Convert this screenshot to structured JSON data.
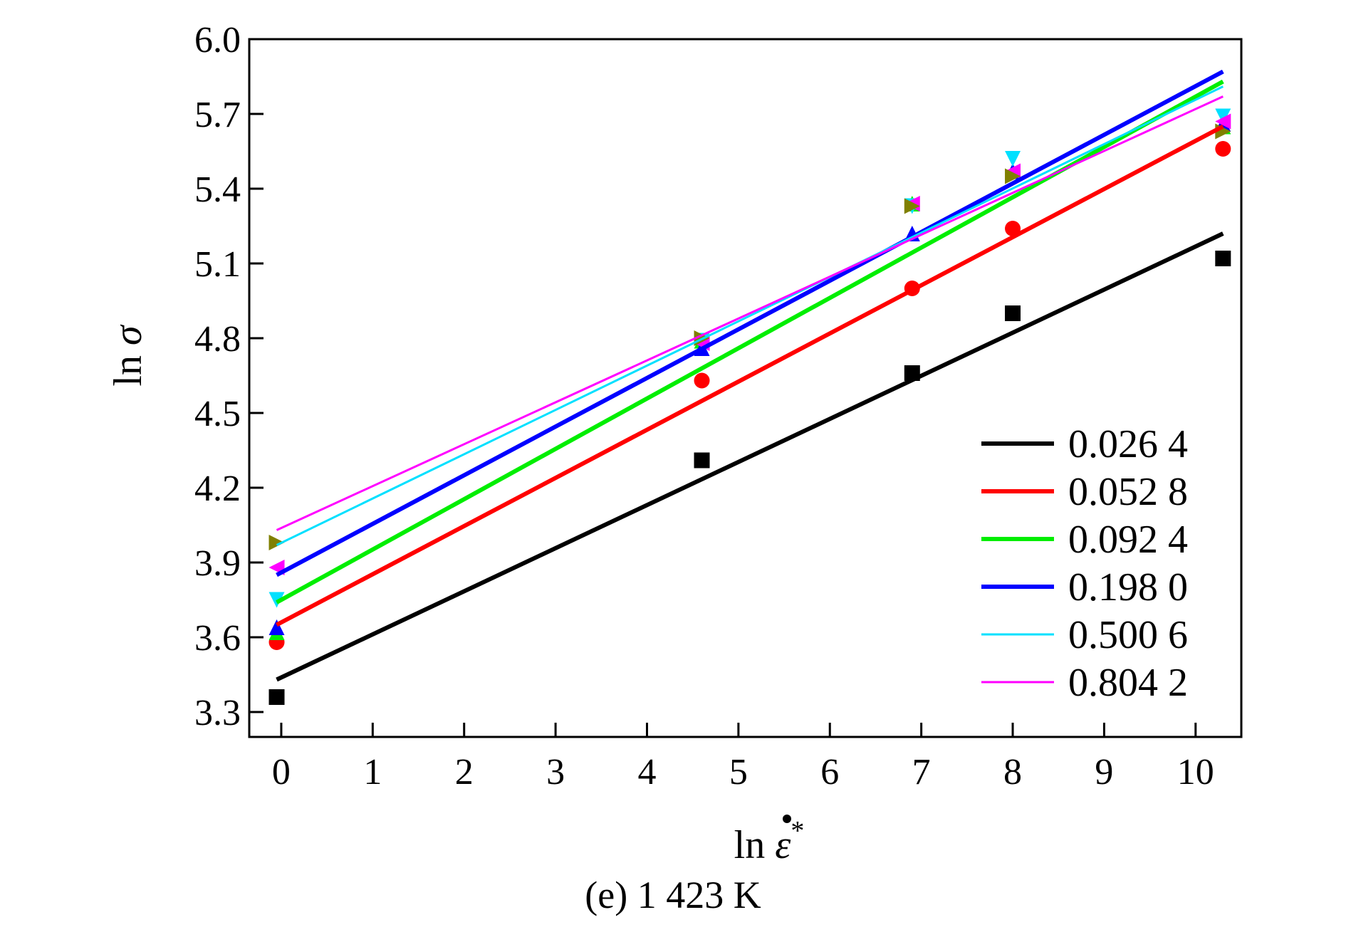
{
  "caption": "(e) 1 423 K",
  "chart_data": {
    "type": "scatter",
    "xlabel_prefix": "ln ",
    "xlabel_symbol": "ε",
    "xlabel_superscript": "*",
    "ylabel_prefix": "ln ",
    "ylabel_symbol": "σ",
    "xlim": [
      -0.35,
      10.5
    ],
    "ylim": [
      3.2,
      6.0
    ],
    "x_ticks": [
      0,
      1,
      2,
      3,
      4,
      5,
      6,
      7,
      8,
      9,
      10
    ],
    "x_tick_labels": [
      "0",
      "1",
      "2",
      "3",
      "4",
      "5",
      "6",
      "7",
      "8",
      "9",
      "10"
    ],
    "y_ticks": [
      3.3,
      3.6,
      3.9,
      4.2,
      4.5,
      4.8,
      5.1,
      5.4,
      5.7,
      6.0
    ],
    "y_tick_labels": [
      "3.3",
      "3.6",
      "3.9",
      "4.2",
      "4.5",
      "4.8",
      "5.1",
      "5.4",
      "5.7",
      "6.0"
    ],
    "grid": false,
    "legend_position": "bottom-right",
    "series": [
      {
        "name": "0.026 4",
        "color": "#000000",
        "marker": "square",
        "line_width": 6,
        "fit": {
          "x": [
            -0.05,
            10.3
          ],
          "y": [
            3.43,
            5.22
          ]
        },
        "points": [
          [
            -0.05,
            3.36
          ],
          [
            4.6,
            4.31
          ],
          [
            6.9,
            4.66
          ],
          [
            8.0,
            4.9
          ],
          [
            10.3,
            5.12
          ]
        ]
      },
      {
        "name": "0.052 8",
        "color": "#ff0000",
        "marker": "circle",
        "line_width": 6,
        "fit": {
          "x": [
            -0.05,
            10.3
          ],
          "y": [
            3.65,
            5.65
          ]
        },
        "points": [
          [
            -0.05,
            3.58
          ],
          [
            4.6,
            4.63
          ],
          [
            6.9,
            5.0
          ],
          [
            8.0,
            5.24
          ],
          [
            10.3,
            5.56
          ]
        ]
      },
      {
        "name": "0.092 4",
        "color": "#00ee00",
        "marker": "triangle-up",
        "line_width": 6,
        "fit": {
          "x": [
            -0.05,
            10.3
          ],
          "y": [
            3.74,
            5.83
          ]
        },
        "points": [
          [
            -0.05,
            3.62
          ],
          [
            4.6,
            4.79
          ],
          [
            6.9,
            5.34
          ],
          [
            8.0,
            5.47
          ],
          [
            10.3,
            5.65
          ]
        ]
      },
      {
        "name": "0.198 0",
        "color": "#0000ff",
        "marker": "triangle-up",
        "line_width": 6,
        "fit": {
          "x": [
            -0.05,
            10.3
          ],
          "y": [
            3.85,
            5.87
          ]
        },
        "points": [
          [
            -0.05,
            3.64
          ],
          [
            4.6,
            4.76
          ],
          [
            6.9,
            5.22
          ],
          [
            8.0,
            5.47
          ],
          [
            10.3,
            5.66
          ]
        ]
      },
      {
        "name": "0.500 6",
        "color": "#00e0ff",
        "marker": "triangle-down",
        "line_width": 3,
        "fit": {
          "x": [
            -0.05,
            10.3
          ],
          "y": [
            3.97,
            5.81
          ]
        },
        "points": [
          [
            -0.05,
            3.75
          ],
          [
            4.6,
            4.79
          ],
          [
            6.9,
            5.33
          ],
          [
            8.0,
            5.52
          ],
          [
            10.3,
            5.69
          ]
        ]
      },
      {
        "name": "0.804 2",
        "color": "#ff00ff",
        "marker": "triangle-left",
        "line_width": 3,
        "fit": {
          "x": [
            -0.05,
            10.3
          ],
          "y": [
            4.03,
            5.77
          ]
        },
        "points": [
          [
            -0.05,
            3.88
          ],
          [
            4.6,
            4.78
          ],
          [
            6.9,
            5.34
          ],
          [
            8.0,
            5.47
          ],
          [
            10.3,
            5.67
          ]
        ]
      },
      {
        "name": "",
        "color": "#808000",
        "marker": "triangle-right",
        "line_width": 0,
        "points": [
          [
            -0.05,
            3.98
          ],
          [
            4.6,
            4.8
          ],
          [
            6.9,
            5.33
          ],
          [
            8.0,
            5.45
          ],
          [
            10.3,
            5.63
          ]
        ]
      }
    ]
  }
}
